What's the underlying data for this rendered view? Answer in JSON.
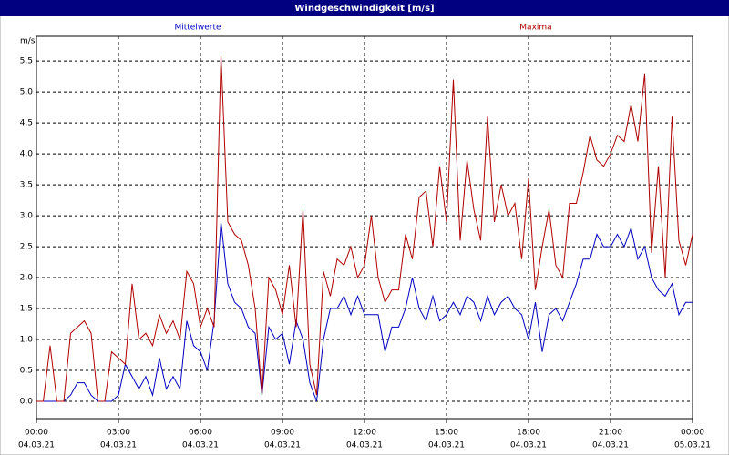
{
  "chart_data": {
    "type": "line",
    "title": "Windgeschwindigkeit [m/s]",
    "y_label": "m/s",
    "x": [
      0,
      0.25,
      0.5,
      0.75,
      1,
      1.25,
      1.5,
      1.75,
      2,
      2.25,
      2.5,
      2.75,
      3,
      3.25,
      3.5,
      3.75,
      4,
      4.25,
      4.5,
      4.75,
      5,
      5.25,
      5.5,
      5.75,
      6,
      6.25,
      6.5,
      6.75,
      7,
      7.25,
      7.5,
      7.75,
      8,
      8.25,
      8.5,
      8.75,
      9,
      9.25,
      9.5,
      9.75,
      10,
      10.25,
      10.5,
      10.75,
      11,
      11.25,
      11.5,
      11.75,
      12,
      12.25,
      12.5,
      12.75,
      13,
      13.25,
      13.5,
      13.75,
      14,
      14.25,
      14.5,
      14.75,
      15,
      15.25,
      15.5,
      15.75,
      16,
      16.25,
      16.5,
      16.75,
      17,
      17.25,
      17.5,
      17.75,
      18,
      18.25,
      18.5,
      18.75,
      19,
      19.25,
      19.5,
      19.75,
      20,
      20.25,
      20.5,
      20.75,
      21,
      21.25,
      21.5,
      21.75,
      22,
      22.25,
      22.5,
      22.75,
      23,
      23.25,
      23.5,
      23.75,
      24
    ],
    "series": [
      {
        "name": "Mittelwerte",
        "color": "#0000c0",
        "values": [
          0,
          0,
          0,
          0,
          0,
          0.1,
          0.3,
          0.3,
          0.1,
          0,
          0,
          0,
          0.1,
          0.6,
          0.4,
          0.2,
          0.4,
          0.1,
          0.7,
          0.2,
          0.4,
          0.2,
          1.3,
          0.9,
          0.8,
          0.5,
          1.3,
          2.9,
          1.9,
          1.6,
          1.5,
          1.2,
          1.1,
          0.1,
          1.2,
          1.0,
          1.1,
          0.6,
          1.3,
          1.0,
          0.3,
          0.0,
          1.0,
          1.5,
          1.5,
          1.7,
          1.4,
          1.7,
          1.4,
          1.4,
          1.4,
          0.8,
          1.2,
          1.2,
          1.5,
          2.0,
          1.5,
          1.3,
          1.7,
          1.3,
          1.4,
          1.6,
          1.4,
          1.7,
          1.6,
          1.3,
          1.7,
          1.4,
          1.6,
          1.7,
          1.5,
          1.4,
          1.0,
          1.6,
          0.8,
          1.4,
          1.5,
          1.3,
          1.6,
          1.9,
          2.3,
          2.3,
          2.7,
          2.5,
          2.5,
          2.7,
          2.5,
          2.8,
          2.3,
          2.5,
          2.0,
          1.8,
          1.7,
          1.9,
          1.4,
          1.6,
          1.6
        ]
      },
      {
        "name": "Maxima",
        "color": "#b00000",
        "values": [
          0,
          0,
          0.9,
          0,
          0,
          1.1,
          1.2,
          1.3,
          1.1,
          0,
          0,
          0.8,
          0.7,
          0.6,
          1.9,
          1.0,
          1.1,
          0.9,
          1.4,
          1.1,
          1.3,
          1.0,
          2.1,
          1.9,
          1.2,
          1.5,
          1.2,
          5.6,
          2.9,
          2.7,
          2.6,
          2.2,
          1.5,
          0.1,
          2.0,
          1.8,
          1.4,
          2.2,
          1.2,
          3.1,
          0.6,
          0.1,
          2.1,
          1.7,
          2.3,
          2.2,
          2.5,
          2.0,
          2.2,
          3.0,
          2.0,
          1.6,
          1.8,
          1.8,
          2.7,
          2.3,
          3.3,
          3.4,
          2.5,
          3.8,
          2.9,
          5.2,
          2.6,
          3.9,
          3.1,
          2.6,
          4.6,
          2.9,
          3.5,
          3.0,
          3.2,
          2.3,
          3.6,
          1.8,
          2.5,
          3.1,
          2.2,
          2.0,
          3.2,
          3.2,
          3.7,
          4.3,
          3.9,
          3.8,
          4.0,
          4.3,
          4.2,
          4.8,
          4.2,
          5.3,
          2.4,
          3.8,
          2.0,
          4.6,
          2.6,
          2.2,
          2.7
        ]
      }
    ],
    "xlim": [
      0,
      24
    ],
    "xticks": [
      {
        "value": 0,
        "label": "00:00",
        "sublabel": "04.03.21"
      },
      {
        "value": 3,
        "label": "03:00",
        "sublabel": "04.03.21"
      },
      {
        "value": 6,
        "label": "06:00",
        "sublabel": "04.03.21"
      },
      {
        "value": 9,
        "label": "09:00",
        "sublabel": "04.03.21"
      },
      {
        "value": 12,
        "label": "12:00",
        "sublabel": "04.03.21"
      },
      {
        "value": 15,
        "label": "15:00",
        "sublabel": "04.03.21"
      },
      {
        "value": 18,
        "label": "18:00",
        "sublabel": "04.03.21"
      },
      {
        "value": 21,
        "label": "21:00",
        "sublabel": "04.03.21"
      },
      {
        "value": 24,
        "label": "00:00",
        "sublabel": "05.03.21"
      }
    ],
    "ylim": [
      -0.28,
      5.9
    ],
    "yticks": [
      {
        "value": 0,
        "label": "0,0"
      },
      {
        "value": 0.5,
        "label": "0,5"
      },
      {
        "value": 1,
        "label": "1,0"
      },
      {
        "value": 1.5,
        "label": "1,5"
      },
      {
        "value": 2,
        "label": "2,0"
      },
      {
        "value": 2.5,
        "label": "2,5"
      },
      {
        "value": 3,
        "label": "3,0"
      },
      {
        "value": 3.5,
        "label": "3,5"
      },
      {
        "value": 4,
        "label": "4,0"
      },
      {
        "value": 4.5,
        "label": "4,5"
      },
      {
        "value": 5,
        "label": "5,0"
      },
      {
        "value": 5.5,
        "label": "5,5"
      }
    ],
    "grid": true
  }
}
